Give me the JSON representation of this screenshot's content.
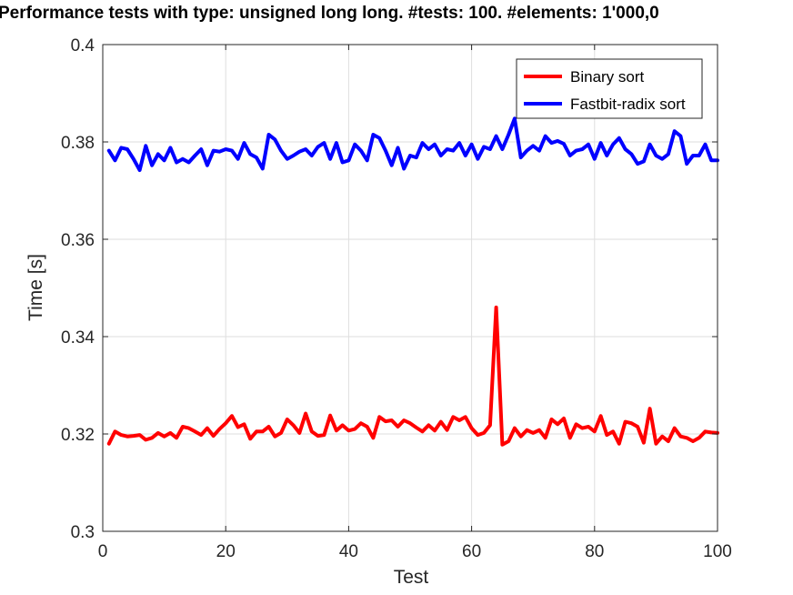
{
  "chart_data": {
    "type": "line",
    "title": "Performance tests with type: unsigned long long. #tests: 100. #elements: 1'000,0",
    "xlabel": "Test",
    "ylabel": "Time [s]",
    "xlim": [
      0,
      100
    ],
    "ylim": [
      0.3,
      0.4
    ],
    "xticks": [
      0,
      20,
      40,
      60,
      80,
      100
    ],
    "yticks": [
      0.3,
      0.32,
      0.34,
      0.36,
      0.38,
      0.4
    ],
    "xtick_labels": [
      "0",
      "20",
      "40",
      "60",
      "80",
      "100"
    ],
    "ytick_labels": [
      "0.3",
      "0.32",
      "0.34",
      "0.36",
      "0.38",
      "0.4"
    ],
    "grid": true,
    "legend_position": "top-right",
    "x": [
      1,
      2,
      3,
      4,
      5,
      6,
      7,
      8,
      9,
      10,
      11,
      12,
      13,
      14,
      15,
      16,
      17,
      18,
      19,
      20,
      21,
      22,
      23,
      24,
      25,
      26,
      27,
      28,
      29,
      30,
      31,
      32,
      33,
      34,
      35,
      36,
      37,
      38,
      39,
      40,
      41,
      42,
      43,
      44,
      45,
      46,
      47,
      48,
      49,
      50,
      51,
      52,
      53,
      54,
      55,
      56,
      57,
      58,
      59,
      60,
      61,
      62,
      63,
      64,
      65,
      66,
      67,
      68,
      69,
      70,
      71,
      72,
      73,
      74,
      75,
      76,
      77,
      78,
      79,
      80,
      81,
      82,
      83,
      84,
      85,
      86,
      87,
      88,
      89,
      90,
      91,
      92,
      93,
      94,
      95,
      96,
      97,
      98,
      99,
      100
    ],
    "series": [
      {
        "name": "Binary sort",
        "color": "#ff0000",
        "values": [
          0.318,
          0.3205,
          0.3198,
          0.3195,
          0.3196,
          0.3198,
          0.3188,
          0.3192,
          0.3202,
          0.3195,
          0.3202,
          0.3192,
          0.3215,
          0.3212,
          0.3205,
          0.3198,
          0.3212,
          0.3196,
          0.321,
          0.3222,
          0.3237,
          0.3214,
          0.322,
          0.319,
          0.3205,
          0.3205,
          0.3215,
          0.3195,
          0.3202,
          0.323,
          0.3218,
          0.3202,
          0.3242,
          0.3205,
          0.3196,
          0.3198,
          0.3238,
          0.3207,
          0.3218,
          0.3207,
          0.321,
          0.3222,
          0.3215,
          0.3192,
          0.3235,
          0.3226,
          0.3228,
          0.3215,
          0.3228,
          0.3222,
          0.3213,
          0.3205,
          0.3218,
          0.3207,
          0.3225,
          0.3208,
          0.3235,
          0.3228,
          0.3235,
          0.3212,
          0.3198,
          0.3202,
          0.3218,
          0.346,
          0.3178,
          0.3185,
          0.3212,
          0.3195,
          0.3208,
          0.3202,
          0.3208,
          0.3192,
          0.323,
          0.322,
          0.3232,
          0.3192,
          0.322,
          0.3212,
          0.3215,
          0.3205,
          0.3237,
          0.3198,
          0.3205,
          0.318,
          0.3225,
          0.3222,
          0.3215,
          0.3182,
          0.3252,
          0.318,
          0.3195,
          0.3185,
          0.3212,
          0.3195,
          0.3192,
          0.3185,
          0.3192,
          0.3205,
          0.3203,
          0.3202
        ]
      },
      {
        "name": "Fastbit-radix sort",
        "color": "#0000ff",
        "values": [
          0.3782,
          0.3762,
          0.3788,
          0.3785,
          0.3765,
          0.3742,
          0.3792,
          0.3752,
          0.3775,
          0.3762,
          0.3788,
          0.3758,
          0.3765,
          0.3758,
          0.3772,
          0.3785,
          0.3752,
          0.3782,
          0.378,
          0.3785,
          0.3782,
          0.3765,
          0.3798,
          0.3775,
          0.3768,
          0.3745,
          0.3815,
          0.3805,
          0.3782,
          0.3765,
          0.3772,
          0.378,
          0.3785,
          0.3772,
          0.379,
          0.3798,
          0.3765,
          0.3798,
          0.3758,
          0.3762,
          0.3795,
          0.3782,
          0.3762,
          0.3815,
          0.3808,
          0.3782,
          0.3752,
          0.3788,
          0.3745,
          0.3772,
          0.3768,
          0.3798,
          0.3785,
          0.3795,
          0.3772,
          0.3785,
          0.3782,
          0.3798,
          0.3772,
          0.3795,
          0.3765,
          0.379,
          0.3785,
          0.3812,
          0.3785,
          0.3815,
          0.3848,
          0.3768,
          0.3782,
          0.3792,
          0.3782,
          0.3812,
          0.3798,
          0.3802,
          0.3796,
          0.3772,
          0.3782,
          0.3785,
          0.3795,
          0.3765,
          0.3798,
          0.3772,
          0.3795,
          0.3808,
          0.3785,
          0.3775,
          0.3755,
          0.376,
          0.3795,
          0.3772,
          0.3765,
          0.3775,
          0.3822,
          0.3812,
          0.3755,
          0.3772,
          0.3772,
          0.3795,
          0.3762,
          0.3762
        ]
      }
    ]
  }
}
